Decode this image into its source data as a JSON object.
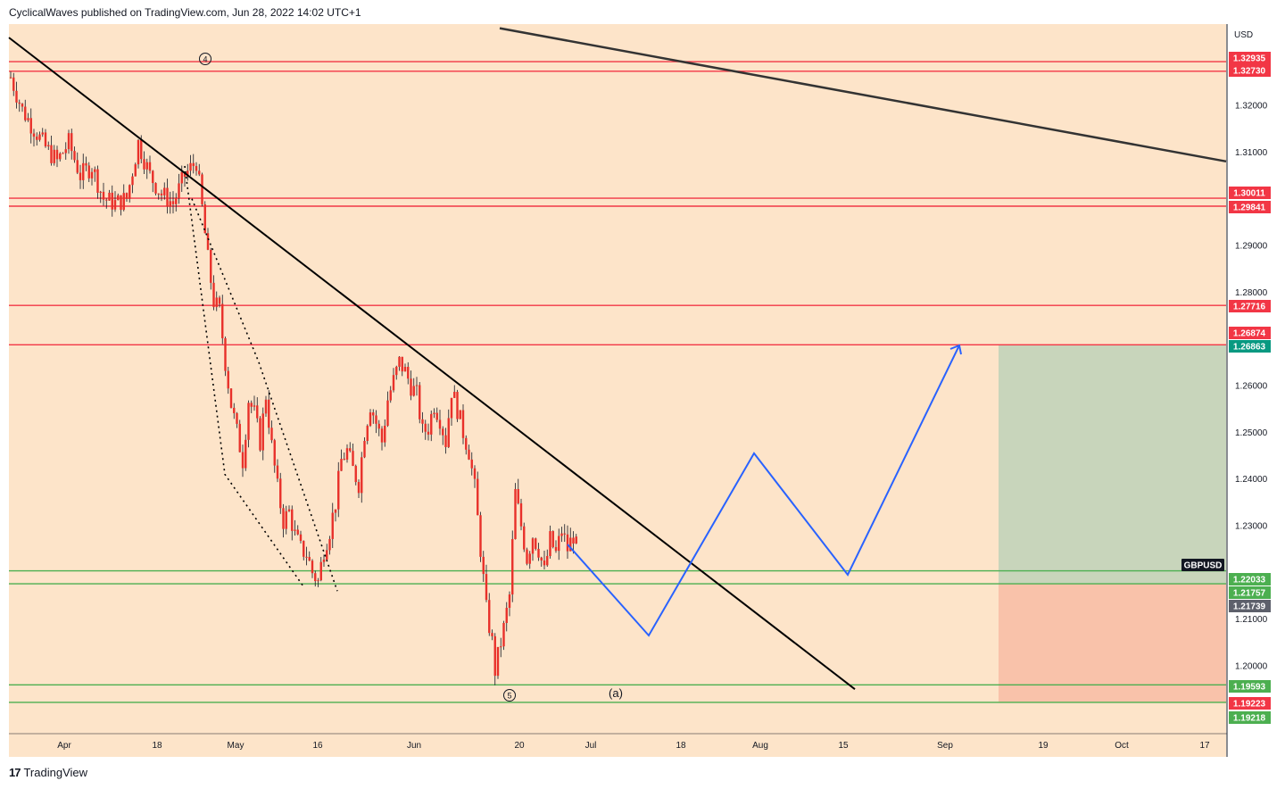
{
  "header": {
    "publisher": "CyclicalWaves published on TradingView.com, Jun 28, 2022 14:02 UTC+1"
  },
  "footer": {
    "brand": "TradingView",
    "logo_mark": "17"
  },
  "colors": {
    "background": "#fde4c9",
    "candle": "#e8302a",
    "candle_wick": "#131722",
    "resistance": "#f23645",
    "support": "#4caf50",
    "trend": "#000000",
    "projection": "#2962ff",
    "target_zone": "#c8d5bb",
    "stop_zone": "#f9c2aa",
    "tag_teal": "#089981",
    "tag_gray": "#5d606b",
    "tag_dark": "#131722"
  },
  "chart_data": {
    "type": "candlestick",
    "symbol": "GBPUSD",
    "currency": "USD",
    "y_range": [
      1.1775,
      1.3395
    ],
    "x_ticks": [
      "Apr",
      "18",
      "May",
      "16",
      "Jun",
      "20",
      "Jul",
      "18",
      "Aug",
      "15",
      "Sep",
      "19",
      "Oct",
      "17"
    ],
    "y_ticks": [
      "1.32000",
      "1.31000",
      "1.29000",
      "1.28000",
      "1.26000",
      "1.25000",
      "1.24000",
      "1.23000",
      "1.21000",
      "1.20000"
    ],
    "price_tags": [
      {
        "label": "1.32935",
        "value": 1.32935,
        "kind": "resistance"
      },
      {
        "label": "1.32730",
        "value": 1.3273,
        "kind": "resistance"
      },
      {
        "label": "1.30011",
        "value": 1.30011,
        "kind": "resistance"
      },
      {
        "label": "1.29841",
        "value": 1.29841,
        "kind": "resistance"
      },
      {
        "label": "1.27716",
        "value": 1.27716,
        "kind": "resistance"
      },
      {
        "label": "1.26874",
        "value": 1.26874,
        "kind": "resistance"
      },
      {
        "label": "1.26863",
        "value": 1.26863,
        "kind": "target"
      },
      {
        "label": "1.22033",
        "value": 1.22033,
        "kind": "support"
      },
      {
        "label": "1.21757",
        "value": 1.21757,
        "kind": "support"
      },
      {
        "label": "1.21739",
        "value": 1.21739,
        "kind": "last"
      },
      {
        "label": "1.19593",
        "value": 1.19593,
        "kind": "support"
      },
      {
        "label": "1.19223",
        "value": 1.19223,
        "kind": "stop"
      },
      {
        "label": "1.19218",
        "value": 1.19218,
        "kind": "support"
      }
    ],
    "symbol_tag": "GBPUSD",
    "price_path": [
      [
        0,
        1.326
      ],
      [
        4,
        1.319
      ],
      [
        8,
        1.315
      ],
      [
        12,
        1.311
      ],
      [
        16,
        1.308
      ],
      [
        20,
        1.312
      ],
      [
        24,
        1.305
      ],
      [
        28,
        1.307
      ],
      [
        32,
        1.3
      ],
      [
        36,
        1.299
      ],
      [
        40,
        1.3
      ],
      [
        44,
        1.312
      ],
      [
        48,
        1.305
      ],
      [
        52,
        1.301
      ],
      [
        56,
        1.299
      ],
      [
        60,
        1.305
      ],
      [
        64,
        1.308
      ],
      [
        66,
        1.298
      ],
      [
        68,
        1.287
      ],
      [
        70,
        1.278
      ],
      [
        72,
        1.276
      ],
      [
        74,
        1.265
      ],
      [
        76,
        1.256
      ],
      [
        78,
        1.25
      ],
      [
        80,
        1.244
      ],
      [
        82,
        1.257
      ],
      [
        84,
        1.254
      ],
      [
        86,
        1.248
      ],
      [
        88,
        1.258
      ],
      [
        90,
        1.247
      ],
      [
        92,
        1.238
      ],
      [
        94,
        1.231
      ],
      [
        96,
        1.233
      ],
      [
        98,
        1.228
      ],
      [
        100,
        1.225
      ],
      [
        102,
        1.224
      ],
      [
        104,
        1.22
      ],
      [
        106,
        1.218
      ],
      [
        108,
        1.225
      ],
      [
        110,
        1.229
      ],
      [
        112,
        1.235
      ],
      [
        114,
        1.244
      ],
      [
        116,
        1.246
      ],
      [
        118,
        1.242
      ],
      [
        120,
        1.239
      ],
      [
        122,
        1.25
      ],
      [
        124,
        1.256
      ],
      [
        126,
        1.252
      ],
      [
        128,
        1.248
      ],
      [
        130,
        1.257
      ],
      [
        132,
        1.261
      ],
      [
        134,
        1.265
      ],
      [
        136,
        1.263
      ],
      [
        138,
        1.26
      ],
      [
        140,
        1.258
      ],
      [
        142,
        1.25
      ],
      [
        144,
        1.251
      ],
      [
        146,
        1.256
      ],
      [
        148,
        1.253
      ],
      [
        150,
        1.248
      ],
      [
        152,
        1.259
      ],
      [
        154,
        1.255
      ],
      [
        156,
        1.25
      ],
      [
        158,
        1.246
      ],
      [
        160,
        1.238
      ],
      [
        162,
        1.225
      ],
      [
        164,
        1.212
      ],
      [
        166,
        1.205
      ],
      [
        167,
        1.199
      ],
      [
        168,
        1.202
      ],
      [
        170,
        1.208
      ],
      [
        172,
        1.215
      ],
      [
        174,
        1.237
      ],
      [
        176,
        1.23
      ],
      [
        178,
        1.223
      ],
      [
        180,
        1.228
      ],
      [
        182,
        1.225
      ],
      [
        184,
        1.22
      ],
      [
        186,
        1.227
      ],
      [
        188,
        1.224
      ],
      [
        190,
        1.229
      ],
      [
        192,
        1.225
      ],
      [
        194,
        1.228
      ],
      [
        196,
        1.223
      ]
    ],
    "trendlines": [
      {
        "name": "main-downtrend",
        "from": [
          "Mar 24",
          1.3345
        ],
        "to": [
          "Jul 31",
          1.195
        ]
      },
      {
        "name": "upper-downtrend",
        "from": [
          "May 25",
          1.3365
        ],
        "to": [
          "Oct 17",
          1.308
        ]
      }
    ],
    "projection_path": [
      1.226,
      1.2065,
      1.2455,
      1.2195,
      1.2686
    ],
    "zones": [
      {
        "name": "target",
        "top": 1.26863,
        "bottom": 1.21757
      },
      {
        "name": "stop",
        "top": 1.21757,
        "bottom": 1.19223
      }
    ],
    "annotations": [
      {
        "label": "④",
        "kind": "wave"
      },
      {
        "label": "⑤",
        "kind": "wave"
      },
      {
        "label": "(a)",
        "kind": "wave"
      }
    ]
  }
}
